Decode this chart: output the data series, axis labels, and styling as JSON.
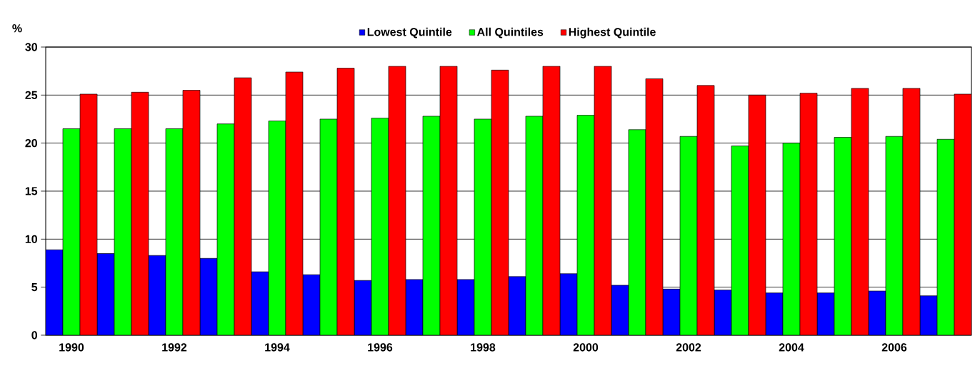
{
  "chart_data": {
    "type": "bar",
    "ylabel": "%",
    "categories": [
      "1990",
      null,
      "1992",
      null,
      "1994",
      null,
      "1996",
      null,
      "1998",
      null,
      "2000",
      null,
      "2002",
      null,
      "2004",
      null,
      "2006",
      null
    ],
    "series": [
      {
        "name": "Lowest Quintile",
        "color": "#0000ff",
        "values": [
          8.9,
          8.5,
          8.3,
          8.0,
          6.6,
          6.3,
          5.7,
          5.8,
          5.8,
          6.1,
          6.4,
          5.2,
          4.8,
          4.7,
          4.4,
          4.4,
          4.6,
          4.1
        ]
      },
      {
        "name": "All Quintiles",
        "color": "#00ff00",
        "values": [
          21.5,
          21.5,
          21.5,
          22.0,
          22.3,
          22.5,
          22.6,
          22.8,
          22.5,
          22.8,
          22.9,
          21.4,
          20.7,
          19.7,
          20.0,
          20.6,
          20.7,
          20.4
        ]
      },
      {
        "name": "Highest Quintile",
        "color": "#ff0000",
        "values": [
          25.1,
          25.3,
          25.5,
          26.8,
          27.4,
          27.8,
          28.0,
          28.0,
          27.6,
          28.0,
          28.0,
          26.7,
          26.0,
          25.0,
          25.2,
          25.7,
          25.7,
          25.1
        ]
      }
    ],
    "ylim": [
      0,
      30
    ],
    "yticks": [
      0,
      5,
      10,
      15,
      20,
      25,
      30
    ],
    "grid": "y",
    "legend": "top"
  }
}
